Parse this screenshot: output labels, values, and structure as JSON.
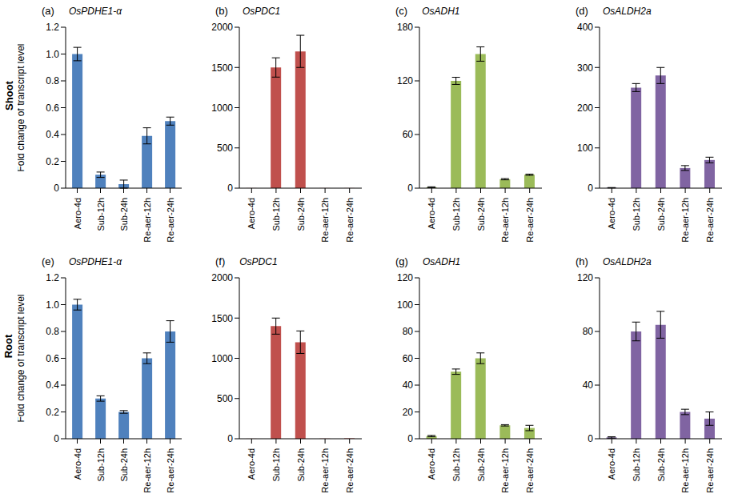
{
  "row_labels": [
    "Shoot",
    "Root"
  ],
  "chart_data": [
    {
      "type": "bar",
      "panel": "(a)",
      "title": "OsPDHE1-α",
      "ylabel": "Fold change of transcript level",
      "categories": [
        "Aero-4d",
        "Sub-12h",
        "Sub-24h",
        "Re-aer-12h",
        "Re-aer-24h"
      ],
      "values": [
        1.0,
        0.1,
        0.03,
        0.39,
        0.5
      ],
      "errors": [
        0.05,
        0.02,
        0.03,
        0.06,
        0.03
      ],
      "color": "#4f81bd",
      "ylim": [
        0,
        1.2
      ],
      "yticks": [
        0,
        0.2,
        0.4,
        0.6,
        0.8,
        {
          "value": 1,
          "label": "1.0"
        },
        1.2
      ]
    },
    {
      "type": "bar",
      "panel": "(b)",
      "title": "OsPDC1",
      "categories": [
        "Aero-4d",
        "Sub-12h",
        "Sub-24h",
        "Re-aer-12h",
        "Re-aer-24h"
      ],
      "values": [
        1,
        1500,
        1700,
        1,
        1
      ],
      "errors": [
        0,
        120,
        200,
        0,
        0
      ],
      "color": "#c0504d",
      "ylim": [
        0,
        2000
      ],
      "yticks": [
        0,
        500,
        1000,
        1500,
        2000
      ]
    },
    {
      "type": "bar",
      "panel": "(c)",
      "title": "OsADH1",
      "categories": [
        "Aero-4d",
        "Sub-12h",
        "Sub-24h",
        "Re-aer-12h",
        "Re-aer-24h"
      ],
      "values": [
        1,
        120,
        150,
        10,
        15
      ],
      "errors": [
        0.5,
        4,
        8,
        0.7,
        0.7
      ],
      "color": "#9bbb59",
      "ylim": [
        0,
        180
      ],
      "yticks": [
        0,
        60,
        120,
        180
      ]
    },
    {
      "type": "bar",
      "panel": "(d)",
      "title": "OsALDH2a",
      "categories": [
        "Aero-4d",
        "Sub-12h",
        "Sub-24h",
        "Re-aer-12h",
        "Re-aer-24h"
      ],
      "values": [
        1,
        250,
        280,
        50,
        70
      ],
      "errors": [
        0.5,
        10,
        20,
        6,
        7
      ],
      "color": "#8064a2",
      "ylim": [
        0,
        400
      ],
      "yticks": [
        0,
        100,
        200,
        300,
        400
      ]
    },
    {
      "type": "bar",
      "panel": "(e)",
      "title": "OsPDHE1-α",
      "ylabel": "Fold change of transcript level",
      "categories": [
        "Aero-4d",
        "Sub-12h",
        "Sub-24h",
        "Re-aer-12h",
        "Re-aer-24h"
      ],
      "values": [
        1.0,
        0.3,
        0.2,
        0.6,
        0.8
      ],
      "errors": [
        0.04,
        0.02,
        0.01,
        0.04,
        0.08
      ],
      "color": "#4f81bd",
      "ylim": [
        0,
        1.2
      ],
      "yticks": [
        0,
        0.2,
        0.4,
        0.6,
        0.8,
        {
          "value": 1,
          "label": "1.0"
        },
        1.2
      ]
    },
    {
      "type": "bar",
      "panel": "(f)",
      "title": "OsPDC1",
      "categories": [
        "Aero-4d",
        "Sub-12h",
        "Sub-24h",
        "Re-aer-12h",
        "Re-aer-24h"
      ],
      "values": [
        1,
        1400,
        1200,
        2,
        5
      ],
      "errors": [
        0,
        100,
        140,
        0,
        0
      ],
      "color": "#c0504d",
      "ylim": [
        0,
        2000
      ],
      "yticks": [
        0,
        500,
        1000,
        1500,
        2000
      ]
    },
    {
      "type": "bar",
      "panel": "(g)",
      "title": "OsADH1",
      "categories": [
        "Aero-4d",
        "Sub-12h",
        "Sub-24h",
        "Re-aer-12h",
        "Re-aer-24h"
      ],
      "values": [
        2,
        50,
        60,
        10,
        8
      ],
      "errors": [
        0.5,
        2,
        4,
        0.5,
        2
      ],
      "color": "#9bbb59",
      "ylim": [
        0,
        120
      ],
      "yticks": [
        0,
        20,
        40,
        60,
        80,
        100,
        120
      ]
    },
    {
      "type": "bar",
      "panel": "(h)",
      "title": "OsALDH2a",
      "categories": [
        "Aero-4d",
        "Sub-12h",
        "Sub-24h",
        "Re-aer-12h",
        "Re-aer-24h"
      ],
      "values": [
        1,
        80,
        85,
        20,
        15
      ],
      "errors": [
        0.5,
        7,
        10,
        2,
        5
      ],
      "color": "#8064a2",
      "ylim": [
        0,
        120
      ],
      "yticks": [
        0,
        40,
        80,
        120
      ]
    }
  ]
}
